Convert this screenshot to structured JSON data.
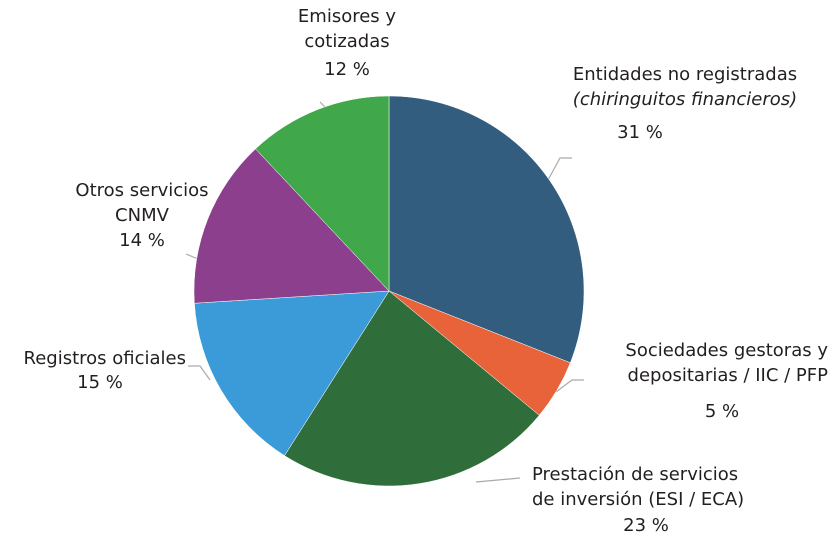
{
  "chart_data": {
    "type": "pie",
    "categories": [
      [
        "Entidades no registradas",
        "(chiringuitos financieros)"
      ],
      [
        "Sociedades gestoras y",
        "depositarias / IIC / PFP"
      ],
      [
        "Prestación de servicios",
        "de inversión (ESI / ECA)"
      ],
      [
        "Registros oficiales"
      ],
      [
        "Otros servicios",
        "CNMV"
      ],
      [
        "Emisores y",
        "cotizadas"
      ]
    ],
    "values": [
      31,
      5,
      23,
      15,
      14,
      12
    ],
    "value_labels": [
      "31 %",
      "5 %",
      "23 %",
      "15 %",
      "14 %",
      "12 %"
    ],
    "colors": [
      "#335d7e",
      "#e8623a",
      "#2f6d3b",
      "#3b9bd8",
      "#8b3f8c",
      "#40a84b"
    ]
  }
}
